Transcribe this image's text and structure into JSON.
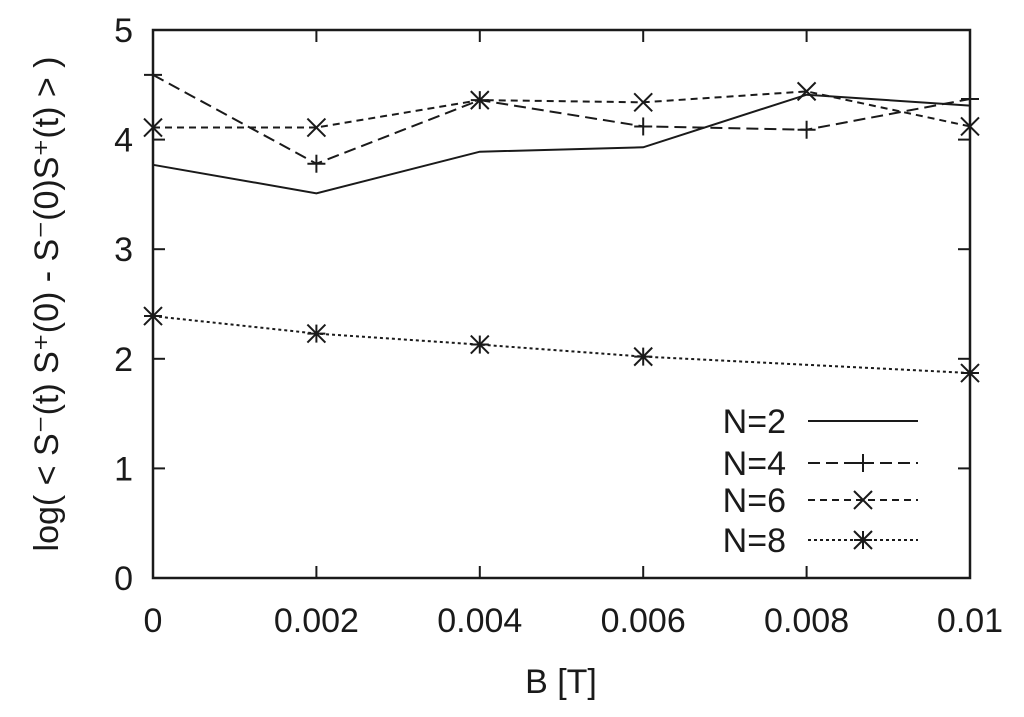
{
  "chart_data": {
    "type": "line",
    "title": "",
    "xlabel": "B [T]",
    "ylabel": "log( < S⁻(t) S⁺(0) - S⁻(0)S⁺(t) > )",
    "xlim": [
      0,
      0.01
    ],
    "ylim": [
      0,
      5
    ],
    "x_ticks": [
      "0",
      "0.002",
      "0.004",
      "0.006",
      "0.008",
      "0.01"
    ],
    "y_ticks": [
      "0",
      "1",
      "2",
      "3",
      "4",
      "5"
    ],
    "x": [
      0,
      0.002,
      0.004,
      0.006,
      0.008,
      0.01
    ],
    "grid": false,
    "legend_position": "bottom-right",
    "series": [
      {
        "name": "N=2",
        "values": [
          3.77,
          3.51,
          3.89,
          3.93,
          4.41,
          4.31
        ],
        "line": "solid",
        "marker": "none"
      },
      {
        "name": "N=4",
        "values": [
          4.59,
          3.78,
          4.36,
          4.12,
          4.09,
          4.37
        ],
        "line": "dashed",
        "marker": "plus"
      },
      {
        "name": "N=6",
        "values": [
          4.11,
          4.11,
          4.36,
          4.34,
          4.44,
          4.12
        ],
        "line": "short-dashed",
        "marker": "cross"
      },
      {
        "name": "N=8",
        "values": [
          2.39,
          2.23,
          2.13,
          2.02,
          null,
          1.87
        ],
        "line": "dotted",
        "marker": "star"
      }
    ]
  }
}
